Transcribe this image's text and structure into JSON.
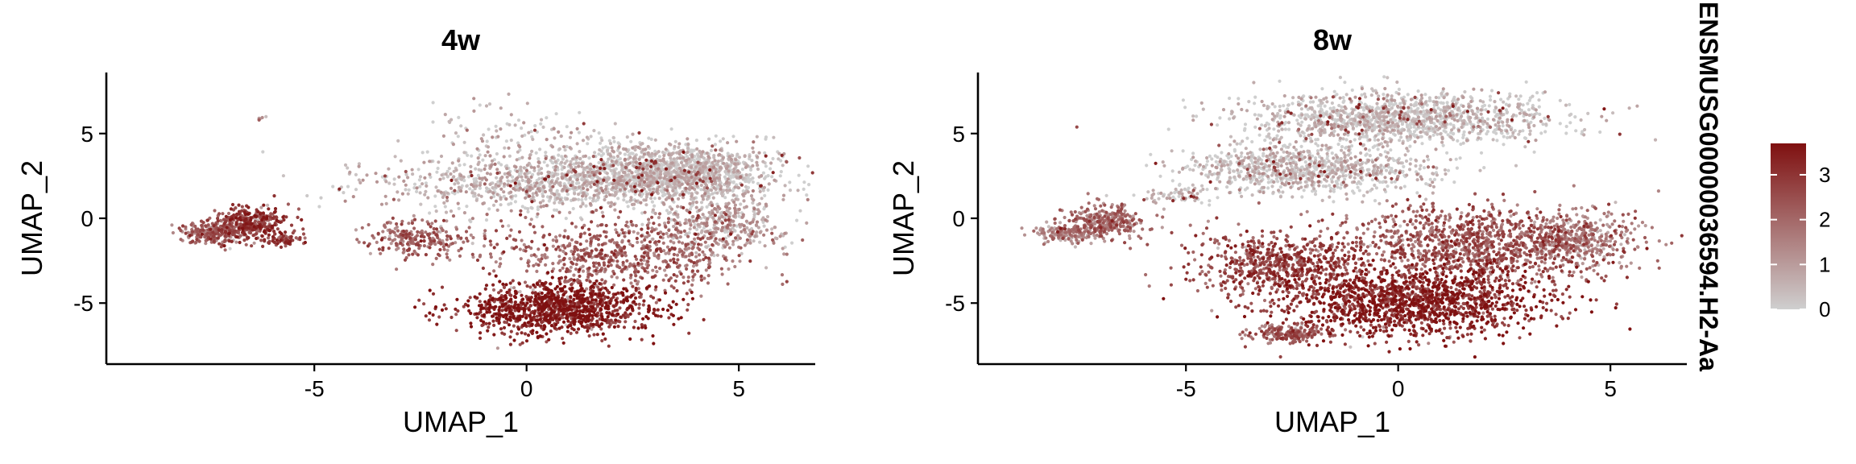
{
  "chart_data": [
    {
      "type": "scatter",
      "title": "4w",
      "xlabel": "UMAP_1",
      "ylabel": "UMAP_2",
      "xlim": [
        -9.9,
        6.8
      ],
      "ylim": [
        -8.6,
        8.6
      ],
      "xticks": [
        -5,
        0,
        5
      ],
      "yticks": [
        -5,
        0,
        5
      ],
      "grid": false,
      "point_color_low": "#cfcfcf",
      "point_color_high": "#7f1010",
      "clusters": [
        {
          "cx": 3.5,
          "cy": 2.7,
          "rx": 2.3,
          "ry": 1.5,
          "n": 1400,
          "expr": 0.05
        },
        {
          "cx": 0.3,
          "cy": 2.0,
          "rx": 3.6,
          "ry": 1.5,
          "n": 900,
          "expr": 0.1
        },
        {
          "cx": -0.5,
          "cy": 5.0,
          "rx": 2.4,
          "ry": 1.7,
          "n": 120,
          "expr": 0.1
        },
        {
          "cx": 0.8,
          "cy": -5.3,
          "rx": 2.0,
          "ry": 1.4,
          "n": 1100,
          "expr": 0.9
        },
        {
          "cx": 2.3,
          "cy": -2.0,
          "rx": 2.7,
          "ry": 2.0,
          "n": 700,
          "expr": 0.55
        },
        {
          "cx": 4.6,
          "cy": -0.4,
          "rx": 1.3,
          "ry": 1.4,
          "n": 350,
          "expr": 0.2
        },
        {
          "cx": -2.5,
          "cy": -1.2,
          "rx": 1.1,
          "ry": 1.0,
          "n": 220,
          "expr": 0.55
        },
        {
          "cx": -6.5,
          "cy": -0.3,
          "rx": 0.8,
          "ry": 0.9,
          "n": 330,
          "expr": 0.75
        },
        {
          "cx": -7.4,
          "cy": -0.9,
          "rx": 0.7,
          "ry": 0.6,
          "n": 200,
          "expr": 0.55
        },
        {
          "cx": -5.7,
          "cy": -1.3,
          "rx": 0.4,
          "ry": 0.3,
          "n": 60,
          "expr": 0.7
        },
        {
          "cx": -6.3,
          "cy": 5.9,
          "rx": 0.15,
          "ry": 0.1,
          "n": 6,
          "expr": 0.2
        }
      ]
    },
    {
      "type": "scatter",
      "title": "8w",
      "xlabel": "UMAP_1",
      "ylabel": "UMAP_2",
      "xlim": [
        -9.9,
        6.8
      ],
      "ylim": [
        -8.6,
        8.6
      ],
      "xticks": [
        -5,
        0,
        5
      ],
      "yticks": [
        -5,
        0,
        5
      ],
      "grid": false,
      "point_color_low": "#cfcfcf",
      "point_color_high": "#7f1010",
      "clusters": [
        {
          "cx": 0.0,
          "cy": 5.9,
          "rx": 3.3,
          "ry": 1.4,
          "n": 1300,
          "expr": 0.03
        },
        {
          "cx": -2.2,
          "cy": 2.9,
          "rx": 2.6,
          "ry": 1.3,
          "n": 900,
          "expr": 0.05
        },
        {
          "cx": 0.3,
          "cy": -4.9,
          "rx": 3.0,
          "ry": 1.9,
          "n": 1500,
          "expr": 0.88
        },
        {
          "cx": 2.0,
          "cy": -1.5,
          "rx": 3.0,
          "ry": 2.0,
          "n": 1100,
          "expr": 0.6
        },
        {
          "cx": -2.8,
          "cy": -2.6,
          "rx": 1.9,
          "ry": 1.6,
          "n": 600,
          "expr": 0.7
        },
        {
          "cx": -2.6,
          "cy": -6.8,
          "rx": 0.8,
          "ry": 0.5,
          "n": 180,
          "expr": 0.6
        },
        {
          "cx": 4.3,
          "cy": -1.2,
          "rx": 1.1,
          "ry": 1.4,
          "n": 300,
          "expr": 0.35
        },
        {
          "cx": -6.9,
          "cy": -0.2,
          "rx": 0.9,
          "ry": 0.9,
          "n": 300,
          "expr": 0.5
        },
        {
          "cx": -7.8,
          "cy": -0.9,
          "rx": 0.7,
          "ry": 0.5,
          "n": 150,
          "expr": 0.35
        },
        {
          "cx": -5.2,
          "cy": 1.3,
          "rx": 0.8,
          "ry": 0.4,
          "n": 60,
          "expr": 0.05
        }
      ]
    }
  ],
  "legend": {
    "title": "ENSMUSG00000036594.H2-Aa",
    "ticks": [
      "3",
      "2",
      "1",
      "0"
    ],
    "tick_values": [
      3,
      2,
      1,
      0
    ],
    "range": [
      0,
      3.7
    ],
    "color_low": "#cfcfcf",
    "color_high": "#7f1010"
  }
}
